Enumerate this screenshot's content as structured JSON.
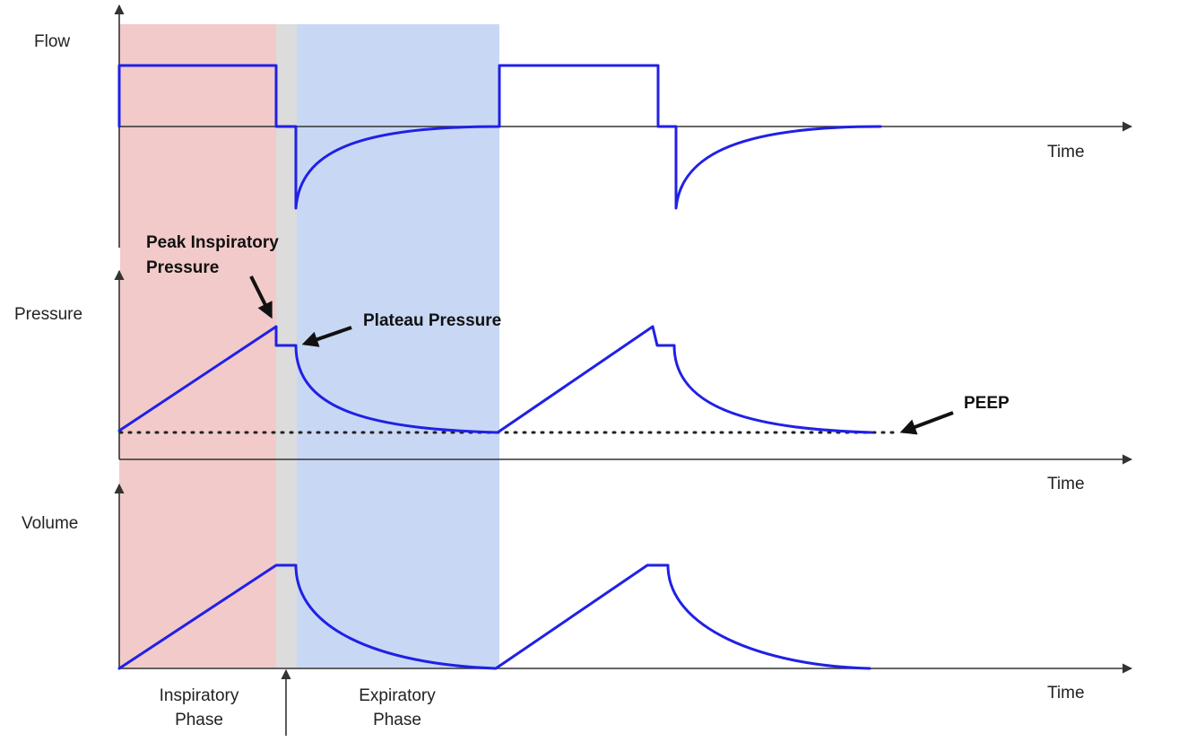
{
  "colors": {
    "inspiratory_band": "#f2caca",
    "pause_band": "#dcdcdc",
    "expiratory_band": "#c8d8f4",
    "waveform": "#2020e6",
    "axis": "#333333",
    "peep_line": "#222222",
    "arrow": "#111111"
  },
  "labels": {
    "flow": "Flow",
    "pressure": "Pressure",
    "volume": "Volume",
    "time_flow": "Time",
    "time_pressure": "Time",
    "time_volume": "Time",
    "peak_line1": "Peak Inspiratory",
    "peak_line2": "Pressure",
    "plateau": "Plateau Pressure",
    "peep": "PEEP",
    "insp_line1": "Inspiratory",
    "insp_line2": "Phase",
    "exp_line1": "Expiratory",
    "exp_line2": "Phase"
  },
  "icons": {
    "axis_arrow": "arrowhead-icon",
    "callout_arrow": "pointer-arrow-icon"
  }
}
